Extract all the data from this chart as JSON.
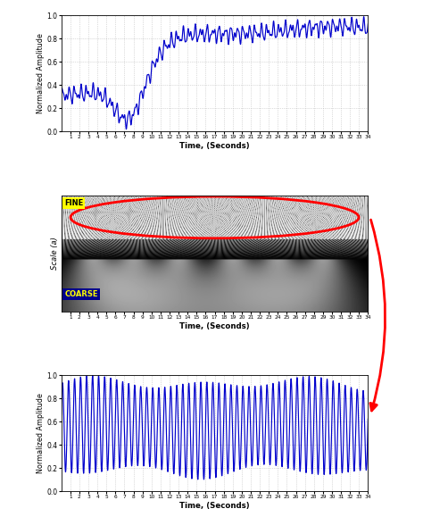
{
  "title1_ylabel": "Normalized Amplitude",
  "title1_xlabel": "Time, (Seconds)",
  "title2_ylabel": "Scale (a)",
  "title2_xlabel": "Time, (Seconds)",
  "title3_ylabel": "Normalized Amplitude",
  "title3_xlabel": "Time, (Seconds)",
  "xlim": [
    0,
    34
  ],
  "ylim1": [
    0,
    1
  ],
  "ylim3": [
    0,
    1
  ],
  "xticks": [
    1,
    2,
    3,
    4,
    5,
    6,
    7,
    8,
    9,
    10,
    11,
    12,
    13,
    14,
    15,
    16,
    17,
    18,
    19,
    20,
    21,
    22,
    23,
    24,
    25,
    26,
    27,
    28,
    29,
    30,
    31,
    32,
    33,
    34
  ],
  "line_color": "#0000CC",
  "fine_label": "FINE",
  "coarse_label": "COARSE",
  "fine_bg": "#FFFF00",
  "coarse_bg": "#00008B",
  "fine_text_color": "#000000",
  "coarse_text_color": "#FFFF00",
  "ellipse_color": "red",
  "arrow_color": "red"
}
